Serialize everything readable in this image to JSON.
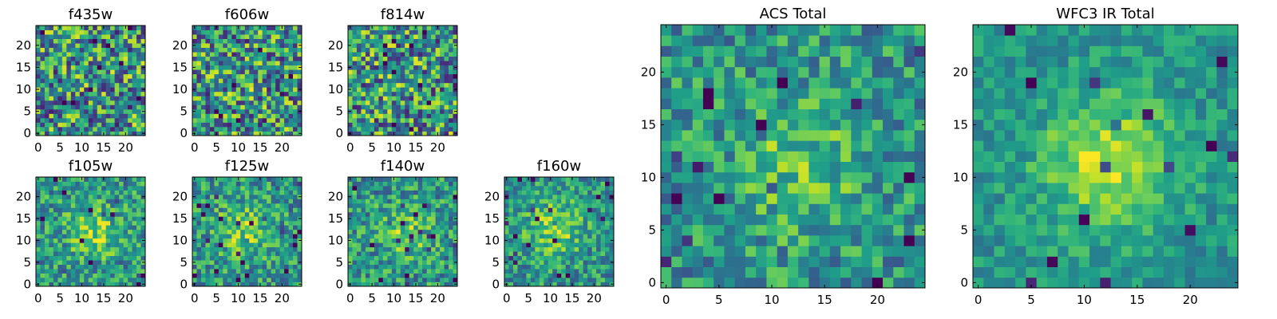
{
  "chart_data": [
    {
      "type": "heatmap",
      "title": "f435w",
      "xticks": [
        0,
        5,
        10,
        15,
        20
      ],
      "yticks": [
        0,
        5,
        10,
        15,
        20
      ],
      "xlim": [
        -0.5,
        24.5
      ],
      "ylim": [
        -0.5,
        24.5
      ],
      "grid_size": [
        25,
        25
      ],
      "colormap": "viridis",
      "noise": 0.95,
      "blob_strength": 0.05,
      "seed": 11
    },
    {
      "type": "heatmap",
      "title": "f606w",
      "xticks": [
        0,
        5,
        10,
        15,
        20
      ],
      "yticks": [
        0,
        5,
        10,
        15,
        20
      ],
      "xlim": [
        -0.5,
        24.5
      ],
      "ylim": [
        -0.5,
        24.5
      ],
      "grid_size": [
        25,
        25
      ],
      "colormap": "viridis",
      "noise": 0.95,
      "blob_strength": 0.05,
      "seed": 23
    },
    {
      "type": "heatmap",
      "title": "f814w",
      "xticks": [
        0,
        5,
        10,
        15,
        20
      ],
      "yticks": [
        0,
        5,
        10,
        15,
        20
      ],
      "xlim": [
        -0.5,
        24.5
      ],
      "ylim": [
        -0.5,
        24.5
      ],
      "grid_size": [
        25,
        25
      ],
      "colormap": "viridis",
      "noise": 0.95,
      "blob_strength": 0.05,
      "seed": 37
    },
    {
      "type": "heatmap",
      "title": "f105w",
      "xticks": [
        0,
        5,
        10,
        15,
        20
      ],
      "yticks": [
        0,
        5,
        10,
        15,
        20
      ],
      "xlim": [
        -0.5,
        24.5
      ],
      "ylim": [
        -0.5,
        24.5
      ],
      "grid_size": [
        25,
        25
      ],
      "colormap": "viridis",
      "noise": 0.6,
      "blob_strength": 0.45,
      "seed": 41
    },
    {
      "type": "heatmap",
      "title": "f125w",
      "xticks": [
        0,
        5,
        10,
        15,
        20
      ],
      "yticks": [
        0,
        5,
        10,
        15,
        20
      ],
      "xlim": [
        -0.5,
        24.5
      ],
      "ylim": [
        -0.5,
        24.5
      ],
      "grid_size": [
        25,
        25
      ],
      "colormap": "viridis",
      "noise": 0.6,
      "blob_strength": 0.45,
      "seed": 53
    },
    {
      "type": "heatmap",
      "title": "f140w",
      "xticks": [
        0,
        5,
        10,
        15,
        20
      ],
      "yticks": [
        0,
        5,
        10,
        15,
        20
      ],
      "xlim": [
        -0.5,
        24.5
      ],
      "ylim": [
        -0.5,
        24.5
      ],
      "grid_size": [
        25,
        25
      ],
      "colormap": "viridis",
      "noise": 0.6,
      "blob_strength": 0.4,
      "seed": 67
    },
    {
      "type": "heatmap",
      "title": "f160w",
      "xticks": [
        0,
        5,
        10,
        15,
        20
      ],
      "yticks": [
        0,
        5,
        10,
        15,
        20
      ],
      "xlim": [
        -0.5,
        24.5
      ],
      "ylim": [
        -0.5,
        24.5
      ],
      "grid_size": [
        25,
        25
      ],
      "colormap": "viridis",
      "noise": 0.55,
      "blob_strength": 0.5,
      "seed": 79
    },
    {
      "type": "heatmap",
      "title": "ACS Total",
      "xticks": [
        0,
        5,
        10,
        15,
        20
      ],
      "yticks": [
        0,
        5,
        10,
        15,
        20
      ],
      "xlim": [
        -0.5,
        24.5
      ],
      "ylim": [
        -0.5,
        24.5
      ],
      "grid_size": [
        25,
        25
      ],
      "colormap": "viridis",
      "noise": 0.55,
      "blob_strength": 0.35,
      "seed": 89
    },
    {
      "type": "heatmap",
      "title": "WFC3 IR Total",
      "xticks": [
        0,
        5,
        10,
        15,
        20
      ],
      "yticks": [
        0,
        5,
        10,
        15,
        20
      ],
      "xlim": [
        -0.5,
        24.5
      ],
      "ylim": [
        -0.5,
        24.5
      ],
      "grid_size": [
        25,
        25
      ],
      "colormap": "viridis",
      "noise": 0.35,
      "blob_strength": 0.65,
      "seed": 97
    }
  ]
}
